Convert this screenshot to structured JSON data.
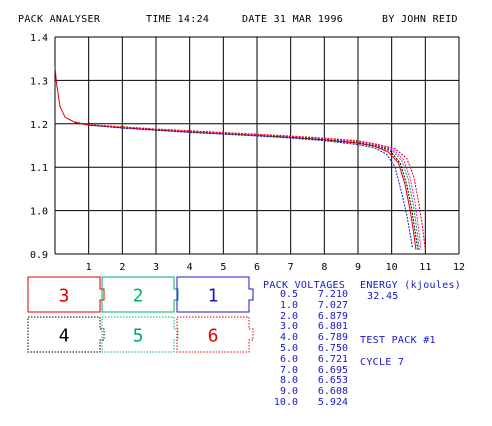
{
  "header": {
    "app_title": "PACK ANALYSER",
    "time": "TIME 14:24",
    "date": "DATE 31 MAR 1996",
    "author": "BY JOHN REID"
  },
  "chart_data": {
    "type": "line",
    "xlim": [
      0,
      12
    ],
    "ylim": [
      0.9,
      1.4
    ],
    "x_ticks": [
      "1",
      "2",
      "3",
      "4",
      "5",
      "6",
      "7",
      "8",
      "9",
      "10",
      "11",
      "12"
    ],
    "y_ticks": [
      "1.4",
      "1.3",
      "1.2",
      "1.1",
      "1.0",
      "0.9"
    ],
    "grid": true,
    "series": [
      {
        "color": "#e00000",
        "x": [
          0,
          0.05,
          0.15,
          0.3,
          0.6,
          1,
          2,
          3,
          4,
          5,
          6,
          7,
          8,
          9,
          9.5,
          9.9,
          10.2,
          10.4,
          10.55,
          10.65,
          10.72
        ],
        "y": [
          1.33,
          1.29,
          1.24,
          1.215,
          1.203,
          1.197,
          1.191,
          1.186,
          1.181,
          1.177,
          1.173,
          1.169,
          1.163,
          1.155,
          1.148,
          1.135,
          1.11,
          1.06,
          1.0,
          0.95,
          0.91
        ]
      },
      {
        "color": "#1818c8",
        "x": [
          0.6,
          1,
          2,
          3,
          4,
          5,
          6,
          7,
          8,
          9,
          9.5,
          9.85,
          10.1,
          10.3,
          10.45,
          10.55,
          10.62
        ],
        "y": [
          1.203,
          1.197,
          1.19,
          1.185,
          1.18,
          1.176,
          1.172,
          1.167,
          1.161,
          1.152,
          1.144,
          1.13,
          1.1,
          1.04,
          0.99,
          0.945,
          0.915
        ]
      },
      {
        "color": "#000000",
        "x": [
          0.6,
          1,
          2,
          3,
          4,
          5,
          6,
          7,
          8,
          9,
          9.5,
          9.95,
          10.25,
          10.45,
          10.6,
          10.7,
          10.78
        ],
        "y": [
          1.203,
          1.197,
          1.191,
          1.186,
          1.182,
          1.178,
          1.174,
          1.169,
          1.164,
          1.157,
          1.15,
          1.138,
          1.11,
          1.06,
          1.0,
          0.95,
          0.91
        ]
      },
      {
        "color": "#00a000",
        "x": [
          0.6,
          1,
          2,
          3,
          4,
          5,
          6,
          7,
          8,
          9,
          9.5,
          10.0,
          10.3,
          10.5,
          10.65,
          10.75,
          10.82
        ],
        "y": [
          1.204,
          1.198,
          1.192,
          1.187,
          1.182,
          1.178,
          1.174,
          1.17,
          1.165,
          1.158,
          1.151,
          1.14,
          1.115,
          1.07,
          1.01,
          0.955,
          0.91
        ]
      },
      {
        "color": "#ff00ff",
        "x": [
          0.6,
          1,
          2,
          3,
          4,
          5,
          6,
          7,
          8,
          9,
          9.5,
          10.05,
          10.35,
          10.55,
          10.7,
          10.8,
          10.87
        ],
        "y": [
          1.204,
          1.198,
          1.192,
          1.187,
          1.183,
          1.179,
          1.175,
          1.171,
          1.166,
          1.159,
          1.152,
          1.141,
          1.118,
          1.075,
          1.015,
          0.96,
          0.91
        ]
      },
      {
        "color": "#e00000",
        "x": [
          0.6,
          1,
          2,
          3,
          4,
          5,
          6,
          7,
          8,
          9,
          9.5,
          10.1,
          10.45,
          10.65,
          10.8,
          10.92,
          11.0
        ],
        "y": [
          1.204,
          1.198,
          1.193,
          1.188,
          1.184,
          1.18,
          1.176,
          1.172,
          1.167,
          1.161,
          1.154,
          1.143,
          1.12,
          1.08,
          1.02,
          0.96,
          0.91
        ]
      }
    ]
  },
  "cells": [
    {
      "label": "3",
      "color": "#e00000",
      "style": "solid"
    },
    {
      "label": "2",
      "color": "#00b060",
      "style": "solid"
    },
    {
      "label": "1",
      "color": "#1818c8",
      "style": "solid"
    },
    {
      "label": "4",
      "color": "#000000",
      "style": "dotted"
    },
    {
      "label": "5",
      "color": "#00b060",
      "style": "dotted"
    },
    {
      "label": "6",
      "color": "#e00000",
      "style": "dotted"
    }
  ],
  "pack_voltages": {
    "heading": "PACK VOLTAGES",
    "rows": [
      [
        "0.5",
        "7.210"
      ],
      [
        "1.0",
        "7.027"
      ],
      [
        "2.0",
        "6.879"
      ],
      [
        "3.0",
        "6.801"
      ],
      [
        "4.0",
        "6.789"
      ],
      [
        "5.0",
        "6.750"
      ],
      [
        "6.0",
        "6.721"
      ],
      [
        "7.0",
        "6.695"
      ],
      [
        "8.0",
        "6.653"
      ],
      [
        "9.0",
        "6.608"
      ],
      [
        "10.0",
        "5.924"
      ]
    ]
  },
  "energy": {
    "label": "ENERGY (kjoules)",
    "value": "32.45"
  },
  "test_pack": "TEST PACK #1",
  "cycle": "CYCLE 7"
}
